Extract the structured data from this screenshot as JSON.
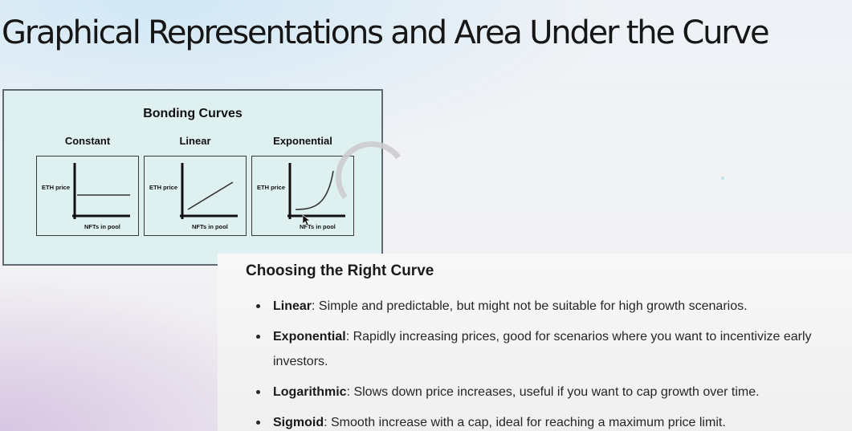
{
  "slide": {
    "title": "Graphical Representations and Area Under the Curve"
  },
  "diagram": {
    "title": "Bonding Curves",
    "panels": [
      {
        "label": "Constant",
        "curve": "constant",
        "y_axis_label": "ETH price",
        "x_axis_label": "NFTs in pool"
      },
      {
        "label": "Linear",
        "curve": "linear",
        "y_axis_label": "ETH price",
        "x_axis_label": "NFTs in pool"
      },
      {
        "label": "Exponential",
        "curve": "exponential",
        "y_axis_label": "ETH price",
        "x_axis_label": "NFTs in pool"
      }
    ]
  },
  "card": {
    "heading": "Choosing the Right Curve",
    "items": [
      {
        "term": "Linear",
        "description": ": Simple and predictable, but might not be suitable for high growth scenarios."
      },
      {
        "term": "Exponential",
        "description": ": Rapidly increasing prices, good for scenarios where you want to incentivize early investors."
      },
      {
        "term": "Logarithmic",
        "description": ": Slows down price increases, useful if you want to cap growth over time."
      },
      {
        "term": "Sigmoid",
        "description": ": Smooth increase with a cap, ideal for reaching a maximum price limit."
      }
    ]
  },
  "colors": {
    "diagram_background": "#dff0f1",
    "diagram_border": "#5f6a70",
    "card_background": "#f6f6f6",
    "text": "#161616"
  }
}
